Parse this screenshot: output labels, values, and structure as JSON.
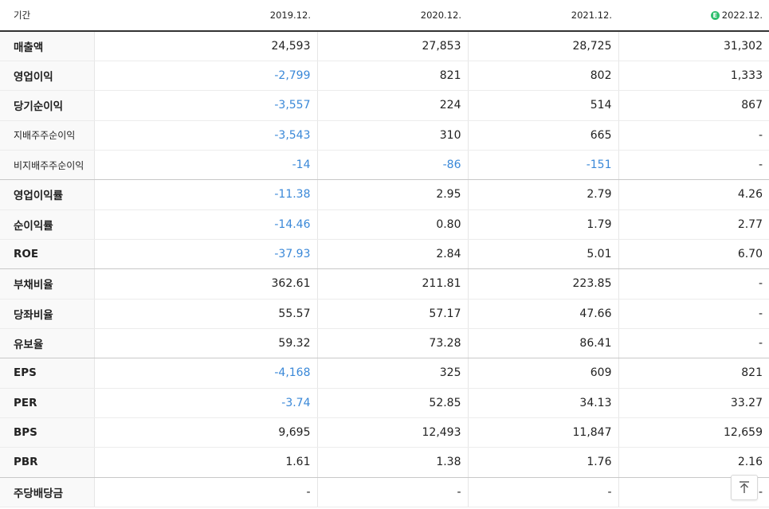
{
  "header": {
    "period_label": "기간",
    "columns": [
      "2019.12.",
      "2020.12.",
      "2021.12.",
      "2022.12."
    ],
    "estimate_badge": "E"
  },
  "rows": [
    {
      "label": "매출액",
      "sub": false,
      "values": [
        "24,593",
        "27,853",
        "28,725",
        "31,302"
      ]
    },
    {
      "label": "영업이익",
      "sub": false,
      "values": [
        "-2,799",
        "821",
        "802",
        "1,333"
      ]
    },
    {
      "label": "당기순이익",
      "sub": false,
      "values": [
        "-3,557",
        "224",
        "514",
        "867"
      ]
    },
    {
      "label": "지배주주순이익",
      "sub": true,
      "values": [
        "-3,543",
        "310",
        "665",
        "-"
      ]
    },
    {
      "label": "비지배주주순이익",
      "sub": true,
      "values": [
        "-14",
        "-86",
        "-151",
        "-"
      ],
      "group_end": true
    },
    {
      "label": "영업이익률",
      "sub": false,
      "values": [
        "-11.38",
        "2.95",
        "2.79",
        "4.26"
      ]
    },
    {
      "label": "순이익률",
      "sub": false,
      "values": [
        "-14.46",
        "0.80",
        "1.79",
        "2.77"
      ]
    },
    {
      "label": "ROE",
      "sub": false,
      "values": [
        "-37.93",
        "2.84",
        "5.01",
        "6.70"
      ],
      "group_end": true
    },
    {
      "label": "부채비율",
      "sub": false,
      "values": [
        "362.61",
        "211.81",
        "223.85",
        "-"
      ]
    },
    {
      "label": "당좌비율",
      "sub": false,
      "values": [
        "55.57",
        "57.17",
        "47.66",
        "-"
      ]
    },
    {
      "label": "유보율",
      "sub": false,
      "values": [
        "59.32",
        "73.28",
        "86.41",
        "-"
      ],
      "group_end": true
    },
    {
      "label": "EPS",
      "sub": false,
      "values": [
        "-4,168",
        "325",
        "609",
        "821"
      ]
    },
    {
      "label": "PER",
      "sub": false,
      "values": [
        "-3.74",
        "52.85",
        "34.13",
        "33.27"
      ]
    },
    {
      "label": "BPS",
      "sub": false,
      "values": [
        "9,695",
        "12,493",
        "11,847",
        "12,659"
      ]
    },
    {
      "label": "PBR",
      "sub": false,
      "values": [
        "1.61",
        "1.38",
        "1.76",
        "2.16"
      ],
      "group_end": true
    },
    {
      "label": "주당배당금",
      "sub": false,
      "values": [
        "-",
        "-",
        "-",
        "-"
      ]
    }
  ],
  "colors": {
    "negative": "#3a88d8",
    "estimate": "#2fbf6e"
  },
  "scroll_top_icon": "arrow-up-icon"
}
